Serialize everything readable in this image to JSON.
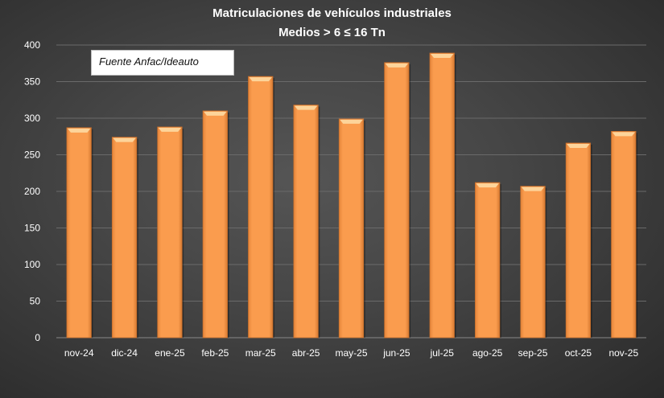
{
  "chart_data": {
    "type": "bar",
    "title": "Matriculaciones de vehículos industriales",
    "subtitle": "Medios > 6 ≤ 16 Tn",
    "annotation": "Fuente Anfac/Ideauto",
    "categories": [
      "nov-24",
      "dic-24",
      "ene-25",
      "feb-25",
      "mar-25",
      "abr-25",
      "may-25",
      "jun-25",
      "jul-25",
      "ago-25",
      "sep-25",
      "oct-25",
      "nov-25"
    ],
    "values": [
      287,
      274,
      288,
      310,
      357,
      318,
      299,
      376,
      389,
      212,
      207,
      266,
      282
    ],
    "ylim": [
      0,
      400
    ],
    "yticks": [
      0,
      50,
      100,
      150,
      200,
      250,
      300,
      350,
      400
    ],
    "grid": true,
    "xlabel": "",
    "ylabel": "",
    "bar_color": "#F79646"
  }
}
